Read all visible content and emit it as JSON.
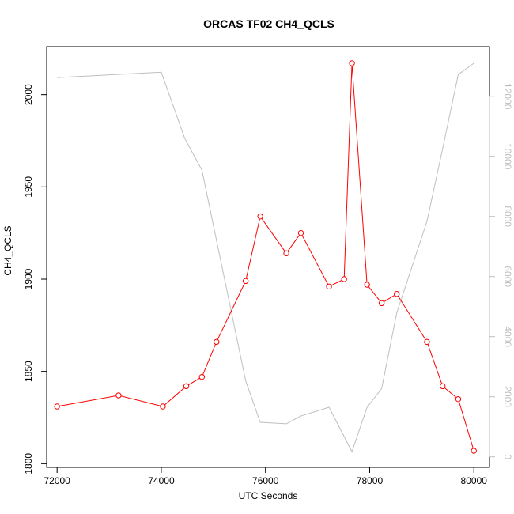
{
  "chart_data": {
    "type": "line",
    "title": "ORCAS TF02 CH4_QCLS",
    "xlabel": "UTC Seconds",
    "ylabel": "CH4_QCLS",
    "xlim": [
      71800,
      80300
    ],
    "ylim": [
      1798,
      2026
    ],
    "y2lim": [
      -350,
      13650
    ],
    "x_ticks": [
      72000,
      74000,
      76000,
      78000,
      80000
    ],
    "y_ticks": [
      1800,
      1850,
      1900,
      1950,
      2000
    ],
    "y2_ticks": [
      0,
      2000,
      4000,
      6000,
      8000,
      10000,
      12000
    ],
    "grid": false,
    "series": [
      {
        "role": "primary",
        "color": "#ff0000",
        "marker": "open-circle",
        "x": [
          72000,
          73180,
          74030,
          74480,
          74780,
          75060,
          75620,
          75900,
          76400,
          76680,
          77220,
          77510,
          77660,
          77950,
          78230,
          78520,
          79100,
          79400,
          79700,
          80000
        ],
        "y": [
          1831,
          1837,
          1831,
          1842,
          1847,
          1866,
          1899,
          1934,
          1914,
          1925,
          1896,
          1900,
          2017,
          1897,
          1887,
          1892,
          1866,
          1842,
          1835,
          1807
        ]
      },
      {
        "role": "secondary",
        "color": "#bebebe",
        "marker": "none",
        "x": [
          72000,
          74000,
          74450,
          74780,
          75620,
          75900,
          76400,
          76680,
          77220,
          77660,
          77950,
          78230,
          78520,
          79100,
          79400,
          79700,
          80000
        ],
        "y": [
          12620,
          12800,
          10600,
          9540,
          2530,
          1150,
          1100,
          1360,
          1650,
          170,
          1650,
          2270,
          4790,
          7840,
          10250,
          12720,
          13100
        ]
      }
    ]
  }
}
